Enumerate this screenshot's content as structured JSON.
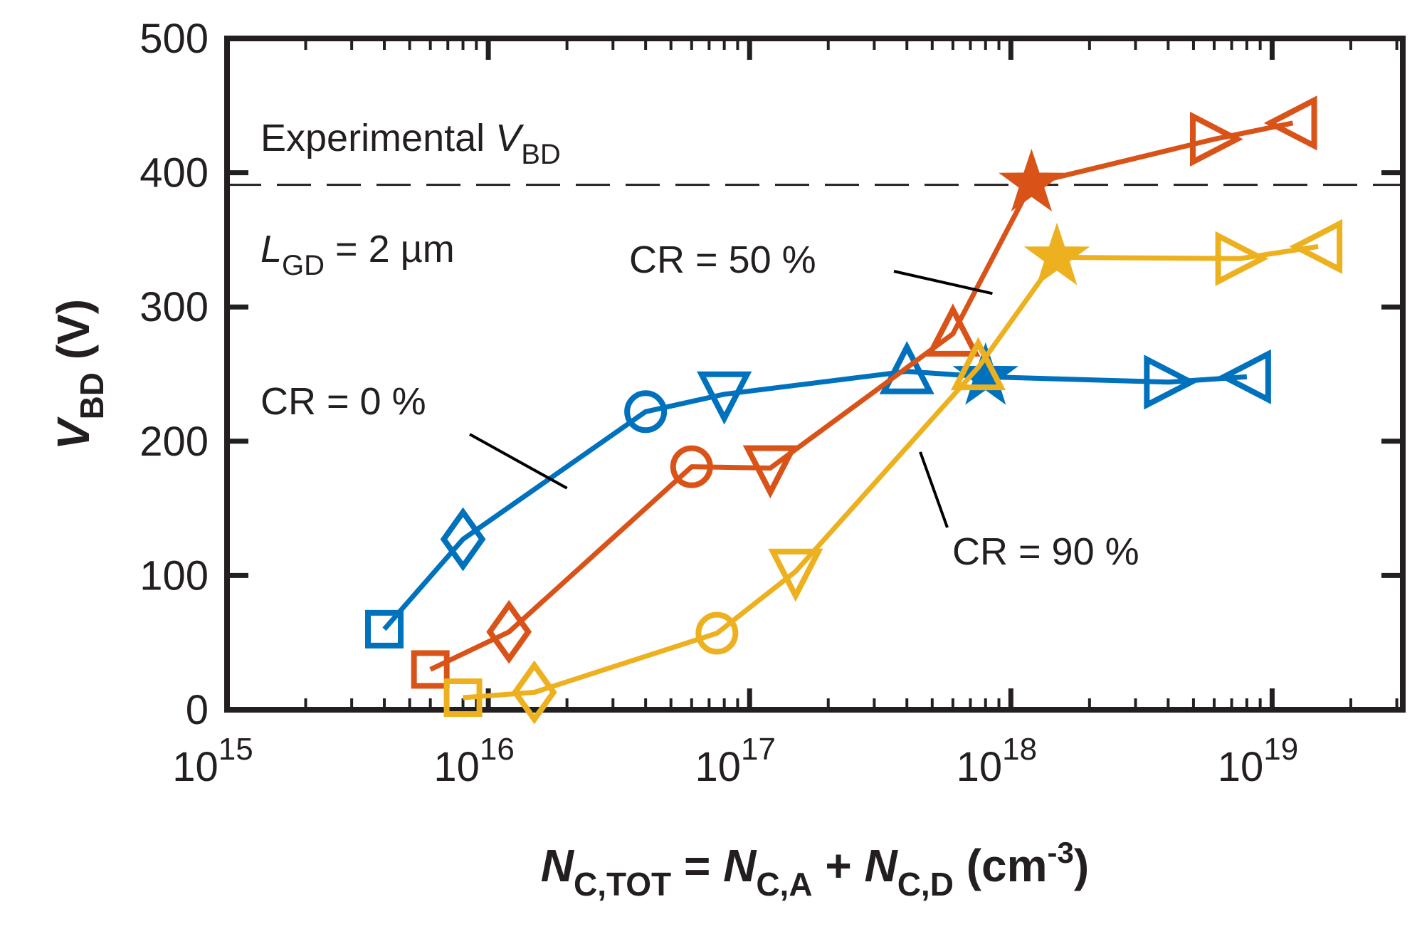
{
  "chart_data": {
    "type": "line",
    "x_scale": "log",
    "xlim_exp": [
      15,
      19.5
    ],
    "ylim": [
      0,
      500
    ],
    "x_ticks": [
      {
        "base": "10",
        "exp": "15",
        "value": 1000000000000000.0
      },
      {
        "base": "10",
        "exp": "16",
        "value": 1e+16
      },
      {
        "base": "10",
        "exp": "17",
        "value": 1e+17
      },
      {
        "base": "10",
        "exp": "18",
        "value": 1e+18
      },
      {
        "base": "10",
        "exp": "19",
        "value": 1e+19
      }
    ],
    "y_ticks": [
      "0",
      "100",
      "200",
      "300",
      "400",
      "500"
    ],
    "y_tick_values": [
      0,
      100,
      200,
      300,
      400,
      500
    ],
    "xlabel": {
      "parts": [
        "N",
        "C,TOT",
        " = ",
        "N",
        "C,A",
        " + ",
        "N",
        "C,D",
        " (cm",
        "-3",
        ")"
      ]
    },
    "ylabel": {
      "v": "V",
      "sub": "BD",
      "unit": " (V)"
    },
    "reference_line": {
      "value": 391,
      "label": {
        "text": "Experimental ",
        "v": "V",
        "sub": "BD"
      }
    },
    "condition": {
      "l": "L",
      "sub": "GD",
      "rest": " = 2 µm"
    },
    "markers": [
      "square",
      "diamond",
      "circle",
      "triangle-down",
      "triangle-up",
      "star",
      "triangle-right",
      "triangle-left"
    ],
    "series": [
      {
        "name": "CR = 0 %",
        "color": "#0072bd",
        "points": [
          {
            "x": 4000000000000000.0,
            "y": 60,
            "marker": "square"
          },
          {
            "x": 8000000000000000.0,
            "y": 127,
            "marker": "diamond"
          },
          {
            "x": 4e+16,
            "y": 222,
            "marker": "circle"
          },
          {
            "x": 8e+16,
            "y": 235,
            "marker": "triangle-down"
          },
          {
            "x": 4e+17,
            "y": 252,
            "marker": "triangle-up"
          },
          {
            "x": 8e+17,
            "y": 248,
            "marker": "star"
          },
          {
            "x": 4e+18,
            "y": 244,
            "marker": "triangle-right"
          },
          {
            "x": 8e+18,
            "y": 248,
            "marker": "triangle-left"
          }
        ]
      },
      {
        "name": "CR = 50 %",
        "color": "#d95319",
        "points": [
          {
            "x": 6000000000000000.0,
            "y": 30,
            "marker": "square"
          },
          {
            "x": 1.2e+16,
            "y": 58,
            "marker": "diamond"
          },
          {
            "x": 6e+16,
            "y": 181,
            "marker": "circle"
          },
          {
            "x": 1.2e+17,
            "y": 180,
            "marker": "triangle-down"
          },
          {
            "x": 6e+17,
            "y": 280,
            "marker": "triangle-up"
          },
          {
            "x": 1.2e+18,
            "y": 392,
            "marker": "star"
          },
          {
            "x": 6e+18,
            "y": 425,
            "marker": "triangle-right"
          },
          {
            "x": 1.2e+19,
            "y": 437,
            "marker": "triangle-left"
          }
        ]
      },
      {
        "name": "CR = 90 %",
        "color": "#edb120",
        "points": [
          {
            "x": 8000000000000000.0,
            "y": 9,
            "marker": "square"
          },
          {
            "x": 1.5e+16,
            "y": 13,
            "marker": "diamond"
          },
          {
            "x": 7.5e+16,
            "y": 57,
            "marker": "circle"
          },
          {
            "x": 1.5e+17,
            "y": 103,
            "marker": "triangle-down"
          },
          {
            "x": 7.5e+17,
            "y": 255,
            "marker": "triangle-up"
          },
          {
            "x": 1.5e+18,
            "y": 337,
            "marker": "star"
          },
          {
            "x": 7.5e+18,
            "y": 336,
            "marker": "triangle-right"
          },
          {
            "x": 1.5e+19,
            "y": 345,
            "marker": "triangle-left"
          }
        ]
      }
    ],
    "annotations": [
      {
        "text": "CR = 0 %",
        "series": 0,
        "pointer_to": {
          "x": 2e+16,
          "y": 165
        }
      },
      {
        "text": "CR = 50 %",
        "series": 1,
        "pointer_to": {
          "x": 8.5e+17,
          "y": 310
        }
      },
      {
        "text": "CR = 90 %",
        "series": 2,
        "pointer_to": {
          "x": 4.5e+17,
          "y": 192
        }
      }
    ]
  }
}
